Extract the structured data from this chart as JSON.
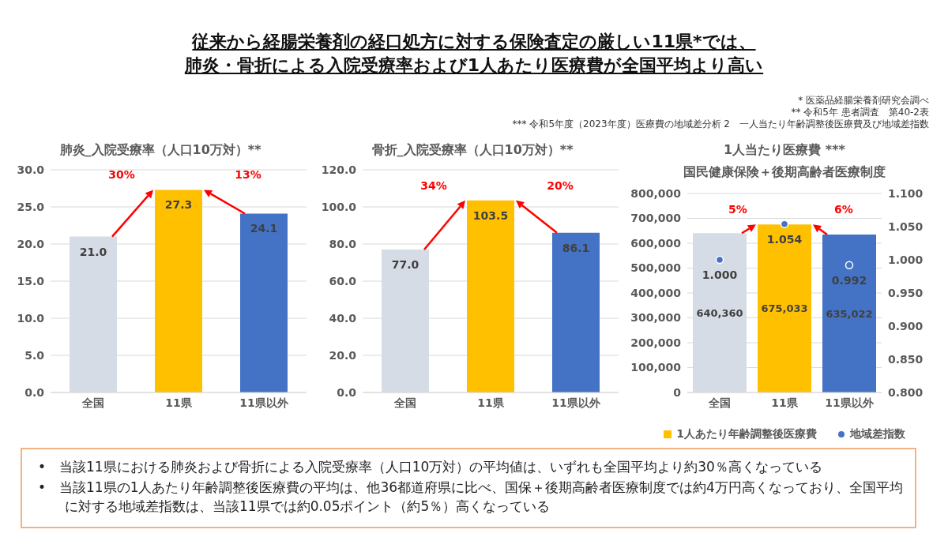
{
  "chart_data": [
    {
      "type": "other",
      "title": "従来から経腸栄養剤の経口処方に対する保険査定の厳しい11県*では、",
      "subtitle": "肺炎・骨折による入院受療率および1人あたり医療費が全国平均より高い",
      "annotations": [
        "*  医薬品経腸栄養剤研究会調べ",
        "**  令和5年 患者調査　第40-2表",
        "*** 令和5年度（2023年度）医療費の地域差分析 2　一人当たり年齢調整後医療費及び地域差指数"
      ]
    },
    {
      "type": "bar",
      "title": "肺炎_入院受療率（人口10万対）**",
      "categories": [
        "全国",
        "11県",
        "11県以外"
      ],
      "values": [
        21.0,
        27.3,
        24.1
      ],
      "colors": [
        "#d6dce5",
        "#ffc000",
        "#4472c4"
      ],
      "value_labels": [
        "21.0",
        "27.3",
        "24.1"
      ],
      "ylim": [
        0,
        30
      ],
      "yticks": [
        {
          "value": 0,
          "label": "0.0"
        },
        {
          "value": 5,
          "label": "5.0"
        },
        {
          "value": 10,
          "label": "10.0"
        },
        {
          "value": 15,
          "label": "15.0"
        },
        {
          "value": 20,
          "label": "20.0"
        },
        {
          "value": 25,
          "label": "25.0"
        },
        {
          "value": 30,
          "label": "30.0"
        }
      ],
      "grid": "y",
      "annotations": [
        "30%",
        "13%"
      ]
    },
    {
      "type": "bar",
      "title": "骨折_入院受療率（人口10万対）**",
      "categories": [
        "全国",
        "11県",
        "11県以外"
      ],
      "values": [
        77.0,
        103.5,
        86.1
      ],
      "colors": [
        "#d6dce5",
        "#ffc000",
        "#4472c4"
      ],
      "value_labels": [
        "77.0",
        "103.5",
        "86.1"
      ],
      "ylim": [
        0,
        120
      ],
      "yticks": [
        {
          "value": 0,
          "label": "0.0"
        },
        {
          "value": 20,
          "label": "20.0"
        },
        {
          "value": 40,
          "label": "40.0"
        },
        {
          "value": 60,
          "label": "60.0"
        },
        {
          "value": 80,
          "label": "80.0"
        },
        {
          "value": 100,
          "label": "100.0"
        },
        {
          "value": 120,
          "label": "120.0"
        }
      ],
      "grid": "y",
      "annotations": [
        "34%",
        "20%"
      ]
    },
    {
      "type": "bar",
      "title": "1人当たり医療費 ***",
      "subtitle": "国民健康保険＋後期高齢者医療制度",
      "categories": [
        "全国",
        "11県",
        "11県以外"
      ],
      "series": [
        {
          "name": "1人あたり年齢調整後医療費",
          "type": "bar",
          "color": "#ffc000",
          "colors": [
            "#d6dce5",
            "#ffc000",
            "#4472c4"
          ],
          "values": [
            640360,
            675033,
            635022
          ],
          "value_labels": [
            "640,360",
            "675,033",
            "635,022"
          ]
        },
        {
          "name": "地域差指数",
          "type": "scatter",
          "axis": "y2",
          "color": "#4472c4",
          "values": [
            1.0,
            1.054,
            0.992
          ],
          "value_labels": [
            "1.000",
            "1.054",
            "0.992"
          ]
        }
      ],
      "ylim": [
        0,
        800000
      ],
      "yticks": [
        0,
        {
          "value": 100000,
          "label": "100,000"
        },
        {
          "value": 200000,
          "label": "200,000"
        },
        {
          "value": 300000,
          "label": "300,000"
        },
        {
          "value": 400000,
          "label": "400,000"
        },
        {
          "value": 500000,
          "label": "500,000"
        },
        {
          "value": 600000,
          "label": "600,000"
        },
        {
          "value": 700000,
          "label": "700,000"
        },
        {
          "value": 800000,
          "label": "800,000"
        }
      ],
      "y2lim": [
        0.8,
        1.1
      ],
      "y2ticks": [
        {
          "value": 0.8,
          "label": "0.800"
        },
        {
          "value": 0.85,
          "label": "0.850"
        },
        {
          "value": 0.9,
          "label": "0.900"
        },
        {
          "value": 0.95,
          "label": "0.950"
        },
        {
          "value": 1.0,
          "label": "1.000"
        },
        {
          "value": 1.05,
          "label": "1.050"
        },
        {
          "value": 1.1,
          "label": "1.100"
        }
      ],
      "grid": "y",
      "legend": "bottom",
      "annotations": [
        "5%",
        "6%"
      ]
    },
    {
      "type": "other",
      "annotations": [
        "•　当該11県における肺炎および骨折による入院受療率（人口10万対）の平均値は、いずれも全国平均より約30％高くなっている",
        "•　当該11県の1人あたり年齢調整後医療費の平均は、他36都道府県に比べ、国保＋後期高齢者医療制度では約4万円高くなっており、全国平均に対する地域差指数は、当該11県では約0.05ポイント（約5％）高くなっている"
      ]
    }
  ]
}
